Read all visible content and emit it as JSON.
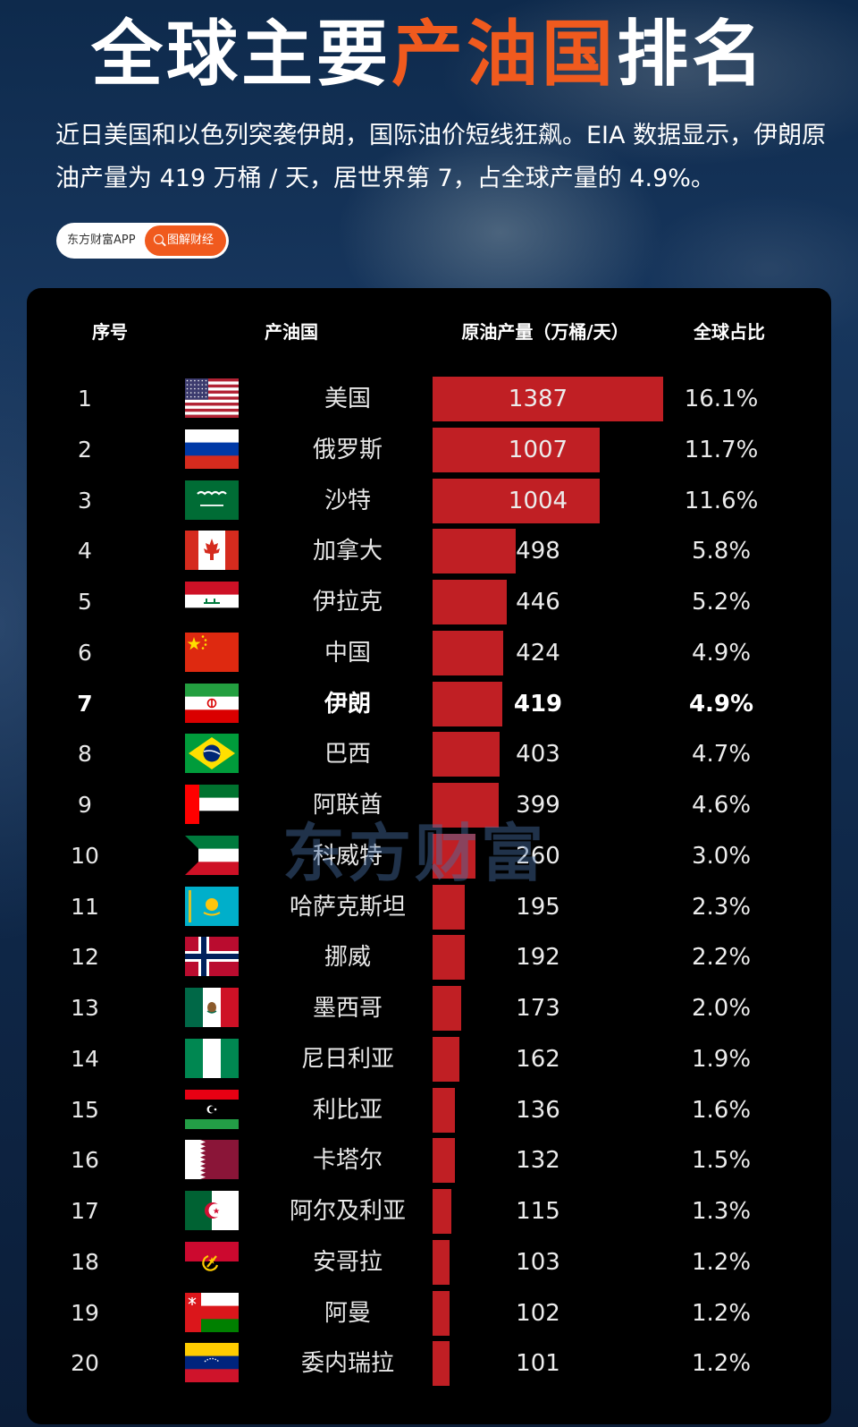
{
  "header": {
    "title_part1": "全球主要",
    "title_highlight": "产油国",
    "title_part2": "排名",
    "subtitle": "近日美国和以色列突袭伊朗，国际油价短线狂飙。EIA 数据显示，伊朗原油产量为 419 万桶 / 天，居世界第 7，占全球产量的 4.9%。",
    "accent_color": "#f05a1e"
  },
  "tag": {
    "source": "东方财富APP",
    "channel": "图解财经"
  },
  "watermark": "东方财富",
  "chart_data": {
    "type": "table",
    "columns": [
      "序号",
      "产油国",
      "原油产量（万桶/天）",
      "全球占比"
    ],
    "bar_color": "#c01f24",
    "highlight_rank": "7",
    "rows": [
      {
        "rank": "1",
        "country": "美国",
        "flag": "flag-usa",
        "value": 1387,
        "value_text": "1387",
        "share": "16.1%"
      },
      {
        "rank": "2",
        "country": "俄罗斯",
        "flag": "flag-russia",
        "value": 1007,
        "value_text": "1007",
        "share": "11.7%"
      },
      {
        "rank": "3",
        "country": "沙特",
        "flag": "flag-saudi-arabia",
        "value": 1004,
        "value_text": "1004",
        "share": "11.6%"
      },
      {
        "rank": "4",
        "country": "加拿大",
        "flag": "flag-canada",
        "value": 498,
        "value_text": "498",
        "share": "5.8%"
      },
      {
        "rank": "5",
        "country": "伊拉克",
        "flag": "flag-iraq",
        "value": 446,
        "value_text": "446",
        "share": "5.2%"
      },
      {
        "rank": "6",
        "country": "中国",
        "flag": "flag-china",
        "value": 424,
        "value_text": "424",
        "share": "4.9%"
      },
      {
        "rank": "7",
        "country": "伊朗",
        "flag": "flag-iran",
        "value": 419,
        "value_text": "419",
        "share": "4.9%"
      },
      {
        "rank": "8",
        "country": "巴西",
        "flag": "flag-brazil",
        "value": 403,
        "value_text": "403",
        "share": "4.7%"
      },
      {
        "rank": "9",
        "country": "阿联酋",
        "flag": "flag-uae",
        "value": 399,
        "value_text": "399",
        "share": "4.6%"
      },
      {
        "rank": "10",
        "country": "科威特",
        "flag": "flag-kuwait",
        "value": 260,
        "value_text": "260",
        "share": "3.0%"
      },
      {
        "rank": "11",
        "country": "哈萨克斯坦",
        "flag": "flag-kazakhstan",
        "value": 195,
        "value_text": "195",
        "share": "2.3%"
      },
      {
        "rank": "12",
        "country": "挪威",
        "flag": "flag-norway",
        "value": 192,
        "value_text": "192",
        "share": "2.2%"
      },
      {
        "rank": "13",
        "country": "墨西哥",
        "flag": "flag-mexico",
        "value": 173,
        "value_text": "173",
        "share": "2.0%"
      },
      {
        "rank": "14",
        "country": "尼日利亚",
        "flag": "flag-nigeria",
        "value": 162,
        "value_text": "162",
        "share": "1.9%"
      },
      {
        "rank": "15",
        "country": "利比亚",
        "flag": "flag-libya",
        "value": 136,
        "value_text": "136",
        "share": "1.6%"
      },
      {
        "rank": "16",
        "country": "卡塔尔",
        "flag": "flag-qatar",
        "value": 132,
        "value_text": "132",
        "share": "1.5%"
      },
      {
        "rank": "17",
        "country": "阿尔及利亚",
        "flag": "flag-algeria",
        "value": 115,
        "value_text": "115",
        "share": "1.3%"
      },
      {
        "rank": "18",
        "country": "安哥拉",
        "flag": "flag-angola",
        "value": 103,
        "value_text": "103",
        "share": "1.2%"
      },
      {
        "rank": "19",
        "country": "阿曼",
        "flag": "flag-oman",
        "value": 102,
        "value_text": "102",
        "share": "1.2%"
      },
      {
        "rank": "20",
        "country": "委内瑞拉",
        "flag": "flag-venezuela",
        "value": 101,
        "value_text": "101",
        "share": "1.2%"
      }
    ]
  }
}
